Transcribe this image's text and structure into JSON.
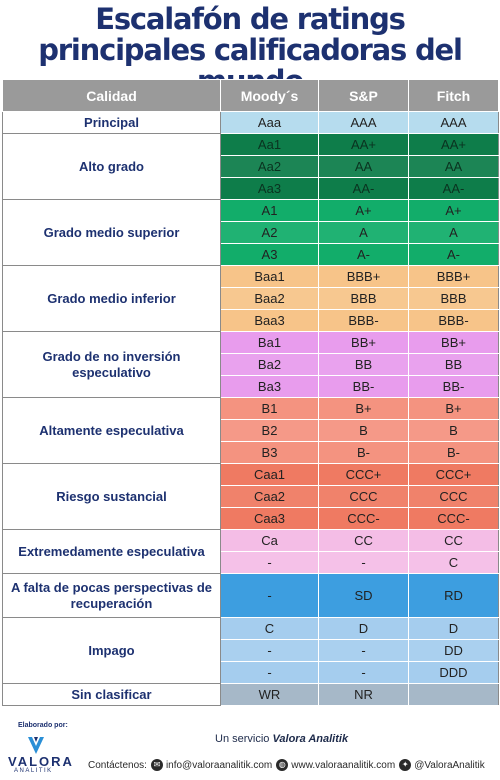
{
  "title": {
    "line1": "Escalafón de ratings",
    "line2": "principales calificadoras del mundo"
  },
  "headers": {
    "quality": "Calidad",
    "moodys": "Moody´s",
    "sp": "S&P",
    "fitch": "Fitch"
  },
  "groups": [
    {
      "category": "Principal",
      "color": "#b6dcee",
      "rows": [
        {
          "moodys": "Aaa",
          "sp": "AAA",
          "fitch": "AAA"
        }
      ]
    },
    {
      "category": "Alto grado",
      "color": "#0e7d4a",
      "rows": [
        {
          "moodys": "Aa1",
          "sp": "AA+",
          "fitch": "AA+"
        },
        {
          "moodys": "Aa2",
          "sp": "AA",
          "fitch": "AA"
        },
        {
          "moodys": "Aa3",
          "sp": "AA-",
          "fitch": "AA-"
        }
      ]
    },
    {
      "category": "Grado medio superior",
      "color": "#12ad6a",
      "rows": [
        {
          "moodys": "A1",
          "sp": "A+",
          "fitch": "A+"
        },
        {
          "moodys": "A2",
          "sp": "A",
          "fitch": "A"
        },
        {
          "moodys": "A3",
          "sp": "A-",
          "fitch": "A-"
        }
      ]
    },
    {
      "category": "Grado medio inferior",
      "color": "#f7c489",
      "rows": [
        {
          "moodys": "Baa1",
          "sp": "BBB+",
          "fitch": "BBB+"
        },
        {
          "moodys": "Baa2",
          "sp": "BBB",
          "fitch": "BBB"
        },
        {
          "moodys": "Baa3",
          "sp": "BBB-",
          "fitch": "BBB-"
        }
      ]
    },
    {
      "category": "Grado de no inversión especulativo",
      "color": "#e89ced",
      "rows": [
        {
          "moodys": "Ba1",
          "sp": "BB+",
          "fitch": "BB+"
        },
        {
          "moodys": "Ba2",
          "sp": "BB",
          "fitch": "BB"
        },
        {
          "moodys": "Ba3",
          "sp": "BB-",
          "fitch": "BB-"
        }
      ]
    },
    {
      "category": "Altamente especulativa",
      "color": "#f49380",
      "rows": [
        {
          "moodys": "B1",
          "sp": "B+",
          "fitch": "B+"
        },
        {
          "moodys": "B2",
          "sp": "B",
          "fitch": "B"
        },
        {
          "moodys": "B3",
          "sp": "B-",
          "fitch": "B-"
        }
      ]
    },
    {
      "category": "Riesgo sustancial",
      "color": "#ef7a62",
      "rows": [
        {
          "moodys": "Caa1",
          "sp": "CCC+",
          "fitch": "CCC+"
        },
        {
          "moodys": "Caa2",
          "sp": "CCC",
          "fitch": "CCC"
        },
        {
          "moodys": "Caa3",
          "sp": "CCC-",
          "fitch": "CCC-"
        }
      ]
    },
    {
      "category": "Extremedamente especulativa",
      "color": "#f4bde6",
      "rows": [
        {
          "moodys": "Ca",
          "sp": "CC",
          "fitch": "CC"
        },
        {
          "moodys": "-",
          "sp": "-",
          "fitch": "C"
        }
      ]
    },
    {
      "category": "A falta de pocas perspectivas de recuperación",
      "color": "#3d9ee0",
      "tall": true,
      "rows": [
        {
          "moodys": "-",
          "sp": "SD",
          "fitch": "RD"
        }
      ]
    },
    {
      "category": "Impago",
      "color": "#a5cdee",
      "rows": [
        {
          "moodys": "C",
          "sp": "D",
          "fitch": "D"
        },
        {
          "moodys": "-",
          "sp": "-",
          "fitch": "DD"
        },
        {
          "moodys": "-",
          "sp": "-",
          "fitch": "DDD"
        }
      ]
    },
    {
      "category": "Sin clasificar",
      "color": "#a6b8c8",
      "rows": [
        {
          "moodys": "WR",
          "sp": "NR",
          "fitch": ""
        }
      ]
    }
  ],
  "footer": {
    "elaborado": "Elaborado por:",
    "logo_text": "VALORA",
    "logo_sub": "ANALITIK",
    "service_prefix": "Un servicio",
    "service_brand": "Valora Analitik",
    "contact_label": "Contáctenos:",
    "email_icon": "email-icon",
    "email": "info@valoraanalitik.com",
    "web_icon": "globe-icon",
    "web": "www.valoraanalitik.com",
    "twitter_icon": "twitter-icon",
    "twitter": "@ValoraAnalitik"
  }
}
